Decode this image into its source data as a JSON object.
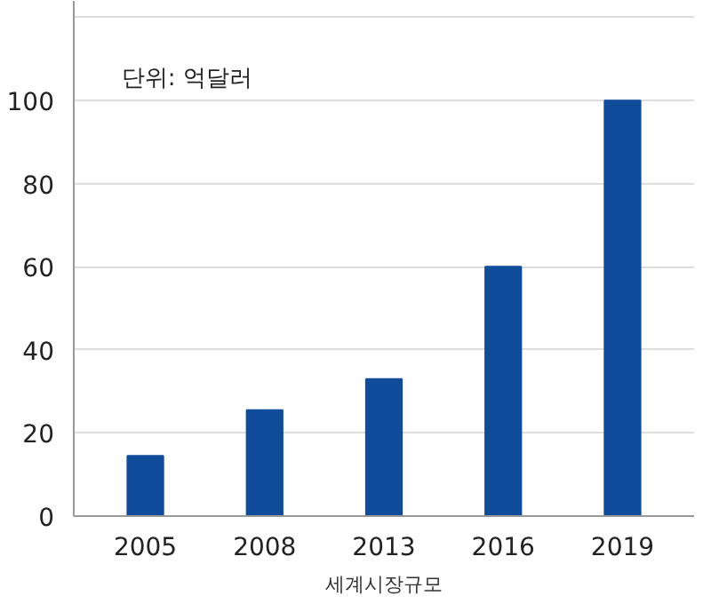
{
  "chart_data": {
    "type": "bar",
    "categories": [
      "2005",
      "2008",
      "2013",
      "2016",
      "2019"
    ],
    "values": [
      14.5,
      25.5,
      33,
      60,
      100
    ],
    "color": "#114c9b",
    "ylim": [
      0,
      124
    ],
    "yticks": [
      0,
      20,
      40,
      60,
      80,
      100,
      {
        "value": 120,
        "label": null
      }
    ],
    "grid": "y",
    "annotations": [
      "단위: 억달러",
      "세계시장규모"
    ]
  }
}
